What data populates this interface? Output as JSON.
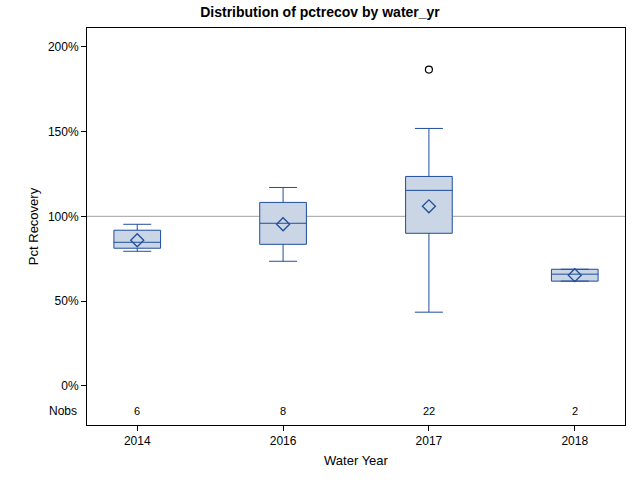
{
  "chart_data": {
    "type": "box",
    "title": "Distribution of pctrecov by water_yr",
    "x_label": "Water Year",
    "y_label": "Pct Recovery",
    "categories": [
      "2014",
      "2016",
      "2017",
      "2018"
    ],
    "min": [
      79.4,
      73.5,
      43.5,
      61.8
    ],
    "q1": [
      81.2,
      83.5,
      90.0,
      61.8
    ],
    "median": [
      84.7,
      95.9,
      115.3,
      65.9
    ],
    "q3": [
      91.8,
      108.2,
      123.5,
      68.8
    ],
    "max": [
      95.3,
      117.0,
      151.8,
      68.8
    ],
    "means": [
      85.9,
      95.3,
      105.9,
      65.3
    ],
    "outliers": [
      [],
      [],
      [
        186.5
      ],
      []
    ],
    "nobs_label": "Nobs",
    "nobs": [
      6,
      8,
      22,
      2
    ],
    "reference_line": 100,
    "color": "#1f4e9c",
    "ylim": [
      -23,
      211
    ],
    "yticks": [
      {
        "value": 0,
        "label": "0%"
      },
      {
        "value": 50,
        "label": "50%"
      },
      {
        "value": 100,
        "label": "100%"
      },
      {
        "value": 150,
        "label": "150%"
      },
      {
        "value": 200,
        "label": "200%"
      }
    ],
    "grid": false
  }
}
